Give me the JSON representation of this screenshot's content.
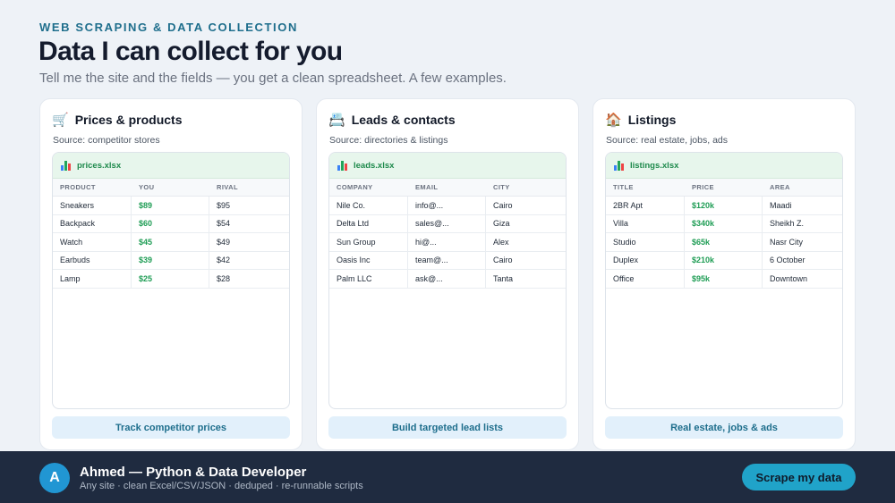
{
  "header": {
    "eyebrow": "WEB SCRAPING & DATA COLLECTION",
    "title": "Data I can collect for you",
    "subtitle": "Tell me the site and the fields — you get a clean spreadsheet. A few examples."
  },
  "cards": [
    {
      "icon": "cart-icon",
      "emoji": "🛒",
      "title": "Prices & products",
      "source": "Source: competitor stores",
      "file": "prices.xlsx",
      "columns": [
        "PRODUCT",
        "YOU",
        "RIVAL"
      ],
      "rows": [
        [
          "Sneakers",
          "$89",
          "$95"
        ],
        [
          "Backpack",
          "$60",
          "$54"
        ],
        [
          "Watch",
          "$45",
          "$49"
        ],
        [
          "Earbuds",
          "$39",
          "$42"
        ],
        [
          "Lamp",
          "$25",
          "$28"
        ]
      ],
      "highlight_col": 1,
      "button": "Track competitor prices"
    },
    {
      "icon": "card-index-icon",
      "emoji": "📇",
      "title": "Leads & contacts",
      "source": "Source: directories & listings",
      "file": "leads.xlsx",
      "columns": [
        "COMPANY",
        "EMAIL",
        "CITY"
      ],
      "rows": [
        [
          "Nile Co.",
          "info@...",
          "Cairo"
        ],
        [
          "Delta Ltd",
          "sales@...",
          "Giza"
        ],
        [
          "Sun Group",
          "hi@...",
          "Alex"
        ],
        [
          "Oasis Inc",
          "team@...",
          "Cairo"
        ],
        [
          "Palm LLC",
          "ask@...",
          "Tanta"
        ]
      ],
      "highlight_col": -1,
      "button": "Build targeted lead lists"
    },
    {
      "icon": "house-icon",
      "emoji": "🏠",
      "title": "Listings",
      "source": "Source: real estate, jobs, ads",
      "file": "listings.xlsx",
      "columns": [
        "TITLE",
        "PRICE",
        "AREA"
      ],
      "rows": [
        [
          "2BR Apt",
          "$120k",
          "Maadi"
        ],
        [
          "Villa",
          "$340k",
          "Sheikh Z."
        ],
        [
          "Studio",
          "$65k",
          "Nasr City"
        ],
        [
          "Duplex",
          "$210k",
          "6 October"
        ],
        [
          "Office",
          "$95k",
          "Downtown"
        ]
      ],
      "highlight_col": 1,
      "button": "Real estate, jobs & ads"
    }
  ],
  "footer": {
    "avatar_letter": "A",
    "name": "Ahmed — Python & Data Developer",
    "tagline": "Any site · clean Excel/CSV/JSON · deduped · re-runnable scripts",
    "cta": "Scrape my data"
  },
  "colors": {
    "accent": "#20a3c9",
    "price_green": "#1f9d55",
    "footer_bg": "#1f2b40"
  }
}
